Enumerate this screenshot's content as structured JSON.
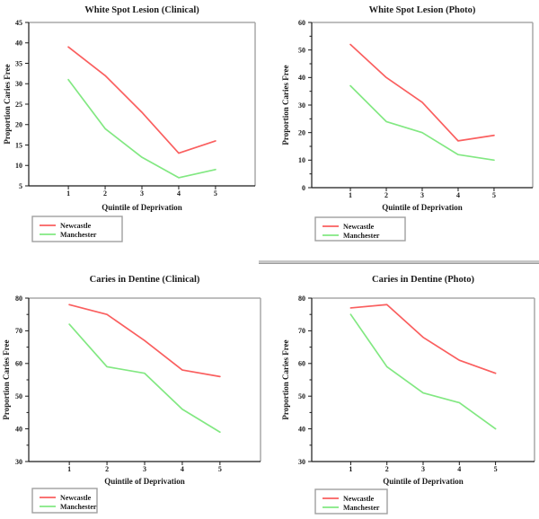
{
  "colors": {
    "newcastle": "#fa5f5f",
    "manchester": "#82e882",
    "axis": "#1a1a1a",
    "frame_light": "#a8a8a8",
    "legend_border": "#a0a0a0",
    "text": "#1a1a1a",
    "background": "#ffffff"
  },
  "chart_data": [
    {
      "type": "line",
      "title": "White Spot Lesion (Clinical)",
      "xlabel": "Quintile of Deprivation",
      "ylabel": "Proportion Caries Free",
      "x": [
        1,
        2,
        3,
        4,
        5
      ],
      "ylim": [
        5,
        45
      ],
      "yticks_major": [
        5,
        10,
        15,
        20,
        25,
        30,
        35,
        40,
        45
      ],
      "yticks_minor": [],
      "grid": false,
      "legend_position": "bottom-left-outside",
      "series": [
        {
          "name": "Newcastle",
          "color_key": "newcastle",
          "values": [
            39,
            32,
            23,
            13,
            16
          ]
        },
        {
          "name": "Manchester",
          "color_key": "manchester",
          "values": [
            31,
            19,
            12,
            7,
            9
          ]
        }
      ]
    },
    {
      "type": "line",
      "title": "White Spot Lesion (Photo)",
      "xlabel": "Quintile of Deprivation",
      "ylabel": "Proportion Caries Free",
      "x": [
        1,
        2,
        3,
        4,
        5
      ],
      "ylim": [
        0,
        60
      ],
      "yticks_major": [
        0,
        10,
        20,
        30,
        40,
        50,
        60
      ],
      "yticks_minor": [
        5,
        15,
        25,
        35,
        45,
        55
      ],
      "grid": false,
      "legend_position": "bottom-left-outside",
      "series": [
        {
          "name": "Newcastle",
          "color_key": "newcastle",
          "values": [
            52,
            40,
            31,
            17,
            19
          ]
        },
        {
          "name": "Manchester",
          "color_key": "manchester",
          "values": [
            37,
            24,
            20,
            12,
            10
          ]
        }
      ]
    },
    {
      "type": "line",
      "title": "Caries in Dentine (Clinical)",
      "xlabel": "Quintile of Deprivation",
      "ylabel": "Proportion Caries Free",
      "x": [
        1,
        2,
        3,
        4,
        5
      ],
      "ylim": [
        30,
        80
      ],
      "yticks_major": [
        30,
        40,
        50,
        60,
        70,
        80
      ],
      "yticks_minor": [
        35,
        45,
        55,
        65,
        75
      ],
      "grid": false,
      "legend_position": "bottom-left-outside",
      "series": [
        {
          "name": "Newcastle",
          "color_key": "newcastle",
          "values": [
            78,
            75,
            67,
            58,
            56
          ]
        },
        {
          "name": "Manchester",
          "color_key": "manchester",
          "values": [
            72,
            59,
            57,
            46,
            39
          ]
        }
      ]
    },
    {
      "type": "line",
      "title": "Caries in Dentine (Photo)",
      "xlabel": "Quintile of Deprivation",
      "ylabel": "Proportion Caries Free",
      "x": [
        1,
        2,
        3,
        4,
        5
      ],
      "ylim": [
        30,
        80
      ],
      "yticks_major": [
        30,
        40,
        50,
        60,
        70,
        80
      ],
      "yticks_minor": [
        35,
        45,
        55,
        65,
        75
      ],
      "grid": false,
      "legend_position": "bottom-left-outside",
      "series": [
        {
          "name": "Newcastle",
          "color_key": "newcastle",
          "values": [
            77,
            78,
            68,
            61,
            57
          ]
        },
        {
          "name": "Manchester",
          "color_key": "manchester",
          "values": [
            75,
            59,
            51,
            48,
            40
          ]
        }
      ]
    }
  ]
}
